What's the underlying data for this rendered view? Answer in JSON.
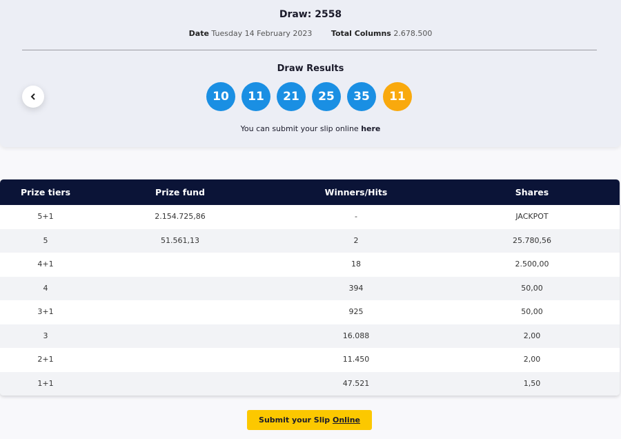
{
  "header": {
    "title": "Draw: 2558",
    "date_label": "Date",
    "date_value": "Tuesday 14 February 2023",
    "columns_label": "Total Columns",
    "columns_value": "2.678.500"
  },
  "results": {
    "title": "Draw Results",
    "numbers": [
      10,
      11,
      21,
      25,
      35
    ],
    "bonus": 11,
    "note": "You can submit your slip online",
    "note_link": "here"
  },
  "table": {
    "headers": [
      "Prize tiers",
      "Prize fund",
      "Winners/Hits",
      "Shares"
    ],
    "rows": [
      {
        "tier": "5+1",
        "prize_fund": "2.154.725,86",
        "winners": "-",
        "shares": "JACKPOT"
      },
      {
        "tier": "5",
        "prize_fund": "51.561,13",
        "winners": "2",
        "shares": "25.780,56"
      },
      {
        "tier": "4+1",
        "winners": "18",
        "shares": "2.500,00"
      },
      {
        "tier": "4",
        "winners": "394",
        "shares": "50,00"
      },
      {
        "tier": "3+1",
        "winners": "925",
        "shares": "50,00"
      },
      {
        "tier": "3",
        "winners": "16.088",
        "shares": "2,00"
      },
      {
        "tier": "2+1",
        "winners": "11.450",
        "shares": "2,00"
      },
      {
        "tier": "1+1",
        "winners": "47.521",
        "shares": "1,50"
      }
    ]
  },
  "button": {
    "text": "Submit your Slip",
    "link": "Online"
  }
}
